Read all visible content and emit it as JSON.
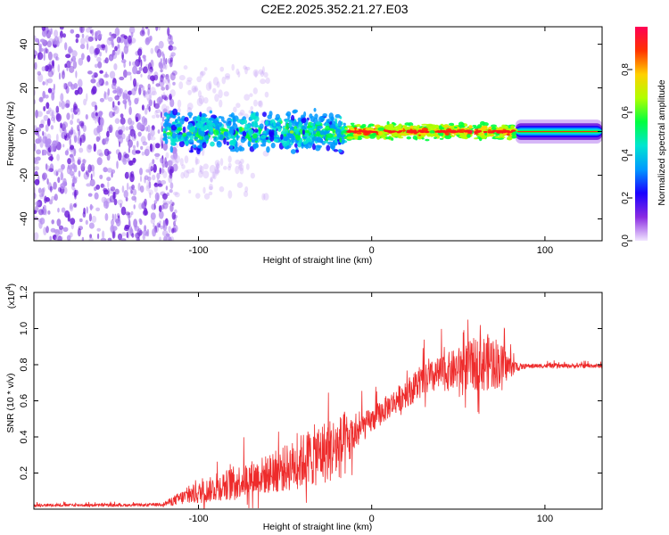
{
  "title": "C2E2.2025.352.21.27.E03",
  "chart_data": [
    {
      "type": "heatmap",
      "name": "spectrogram",
      "xlabel": "Height of straight line (km)",
      "ylabel": "Frequency (Hz)",
      "xlim": [
        -195,
        133
      ],
      "ylim": [
        -50,
        48
      ],
      "xticks": [
        -100,
        0,
        100
      ],
      "xtick_labels": [
        "-100",
        "0",
        "100"
      ],
      "yticks": [
        -40,
        -20,
        0,
        20,
        40
      ],
      "ytick_labels": [
        "-40",
        "-20",
        "0",
        "20",
        "40"
      ],
      "colorbar": {
        "label": "Normalized spectral amplitude",
        "range": [
          0,
          1
        ],
        "ticks": [
          0.0,
          0.2,
          0.4,
          0.6,
          0.8
        ],
        "tick_labels": [
          "0.0",
          "0.2",
          "0.4",
          "0.6",
          "0.8"
        ],
        "colors": [
          "#f2e6ff",
          "#8a2be2",
          "#1a00ff",
          "#0099ff",
          "#00e5d0",
          "#00ff40",
          "#b0ff00",
          "#ffd000",
          "#ff3300",
          "#ff0055"
        ]
      },
      "regions": [
        {
          "x_range": [
            -195,
            -113
          ],
          "freq_spread": 48,
          "amplitude": 0.25,
          "description": "broadband noise"
        },
        {
          "x_range": [
            -120,
            -15
          ],
          "freq_spread": 10,
          "amplitude": 0.45,
          "description": "scattered band near 0 Hz"
        },
        {
          "x_range": [
            -15,
            83
          ],
          "freq_spread": 4,
          "amplitude": 0.85,
          "description": "narrow strong band at 0 Hz"
        },
        {
          "x_range": [
            83,
            133
          ],
          "freq_spread": 2,
          "amplitude": 0.95,
          "description": "smooth band at 0 Hz"
        }
      ]
    },
    {
      "type": "line",
      "name": "snr",
      "xlabel": "Height of straight line (km)",
      "ylabel": "SNR (10 * v/v)",
      "scale_label": "(x10",
      "scale_exponent": "4",
      "scale_suffix": ")",
      "xlim": [
        -195,
        133
      ],
      "ylim": [
        0,
        1.2
      ],
      "xticks": [
        -100,
        0,
        100
      ],
      "xtick_labels": [
        "-100",
        "0",
        "100"
      ],
      "yticks": [
        0.2,
        0.4,
        0.6,
        0.8,
        1.0,
        1.2
      ],
      "ytick_labels": [
        "0.2",
        "0.4",
        "0.6",
        "0.8",
        "1.0",
        "1.2"
      ],
      "color": "#ee2b2b",
      "series": [
        {
          "name": "SNR",
          "x": [
            -195,
            -150,
            -130,
            -120,
            -110,
            -100,
            -80,
            -60,
            -45,
            -35,
            -25,
            -15,
            -10,
            -5,
            0,
            10,
            20,
            30,
            40,
            50,
            60,
            70,
            75,
            80,
            85,
            90,
            110,
            125,
            133
          ],
          "y": [
            0.02,
            0.02,
            0.02,
            0.025,
            0.05,
            0.07,
            0.12,
            0.16,
            0.2,
            0.24,
            0.27,
            0.3,
            0.38,
            0.43,
            0.47,
            0.55,
            0.62,
            0.68,
            0.72,
            0.74,
            0.76,
            0.77,
            0.76,
            0.77,
            0.78,
            0.79,
            0.79,
            0.79,
            0.79
          ],
          "noise": [
            0.008,
            0.008,
            0.008,
            0.01,
            0.04,
            0.06,
            0.09,
            0.11,
            0.14,
            0.17,
            0.18,
            0.18,
            0.1,
            0.08,
            0.07,
            0.07,
            0.08,
            0.09,
            0.1,
            0.12,
            0.15,
            0.16,
            0.12,
            0.06,
            0.02,
            0.012,
            0.012,
            0.012,
            0.012
          ]
        }
      ]
    }
  ]
}
